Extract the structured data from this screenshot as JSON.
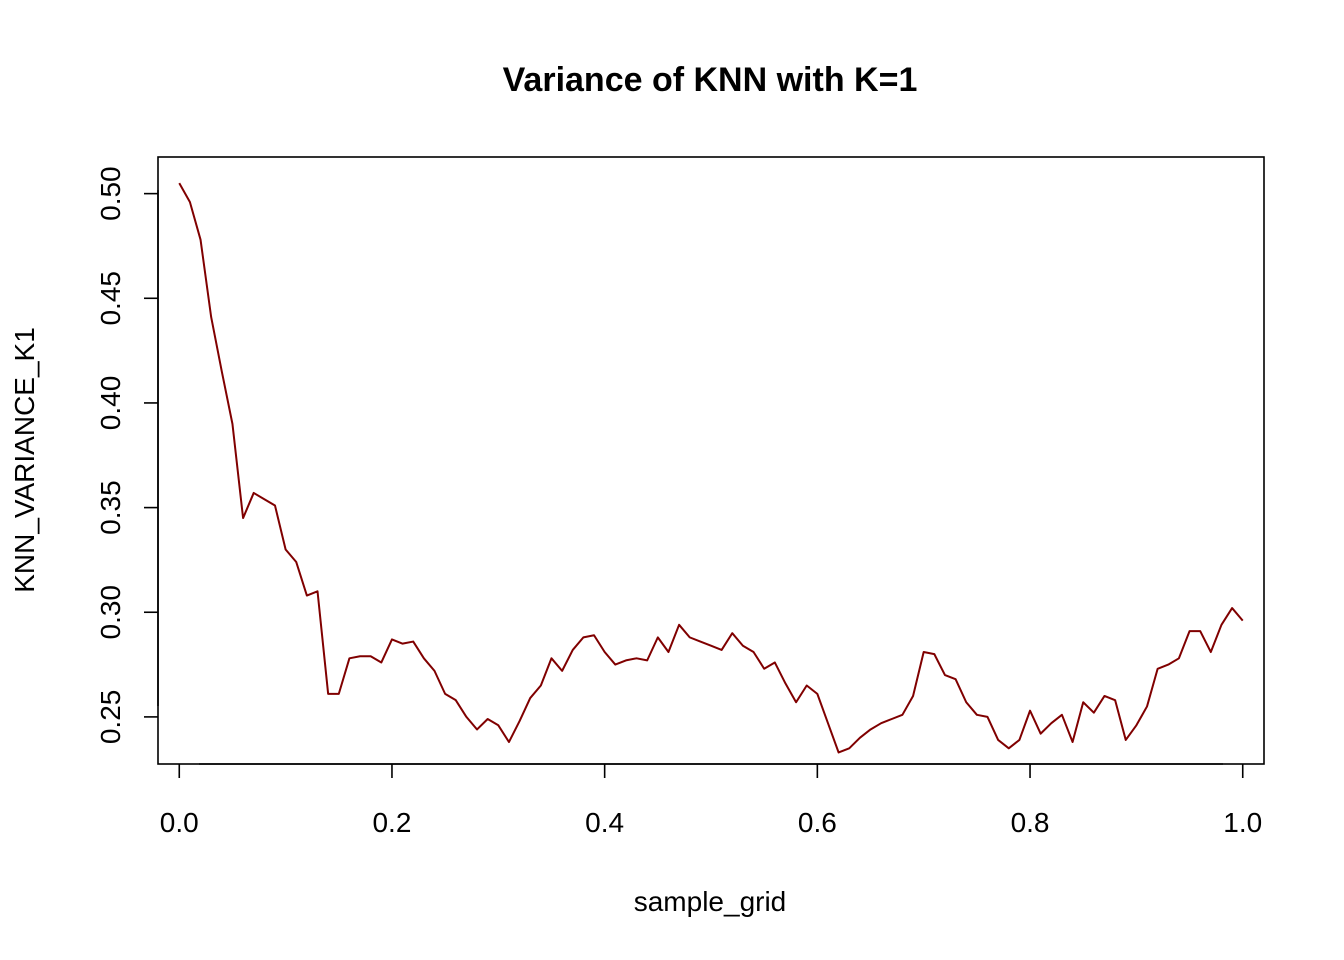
{
  "chart_data": {
    "type": "line",
    "title": "Variance of KNN with K=1",
    "xlabel": "sample_grid",
    "ylabel": "KNN_VARIANCE_K1",
    "xlim": [
      -0.02,
      1.02
    ],
    "ylim": [
      0.2275,
      0.5175
    ],
    "x_ticks": [
      {
        "value": 0.0,
        "label": "0.0"
      },
      {
        "value": 0.2,
        "label": "0.2"
      },
      {
        "value": 0.4,
        "label": "0.4"
      },
      {
        "value": 0.6,
        "label": "0.6"
      },
      {
        "value": 0.8,
        "label": "0.8"
      },
      {
        "value": 1.0,
        "label": "1.0"
      }
    ],
    "y_ticks": [
      {
        "value": 0.25,
        "label": "0.25"
      },
      {
        "value": 0.3,
        "label": "0.30"
      },
      {
        "value": 0.35,
        "label": "0.35"
      },
      {
        "value": 0.4,
        "label": "0.40"
      },
      {
        "value": 0.45,
        "label": "0.45"
      },
      {
        "value": 0.5,
        "label": "0.50"
      }
    ],
    "grid": false,
    "line_color": "#800000",
    "x": [
      0.0,
      0.01,
      0.02,
      0.03,
      0.04,
      0.05,
      0.06,
      0.07,
      0.08,
      0.09,
      0.1,
      0.11,
      0.12,
      0.13,
      0.14,
      0.15,
      0.16,
      0.17,
      0.18,
      0.19,
      0.2,
      0.21,
      0.22,
      0.23,
      0.24,
      0.25,
      0.26,
      0.27,
      0.28,
      0.29,
      0.3,
      0.31,
      0.32,
      0.33,
      0.34,
      0.35,
      0.36,
      0.37,
      0.38,
      0.39,
      0.4,
      0.41,
      0.42,
      0.43,
      0.44,
      0.45,
      0.46,
      0.47,
      0.48,
      0.49,
      0.5,
      0.51,
      0.52,
      0.53,
      0.54,
      0.55,
      0.56,
      0.57,
      0.58,
      0.59,
      0.6,
      0.61,
      0.62,
      0.63,
      0.64,
      0.65,
      0.66,
      0.67,
      0.68,
      0.69,
      0.7,
      0.71,
      0.72,
      0.73,
      0.74,
      0.75,
      0.76,
      0.77,
      0.78,
      0.79,
      0.8,
      0.81,
      0.82,
      0.83,
      0.84,
      0.85,
      0.86,
      0.87,
      0.88,
      0.89,
      0.9,
      0.91,
      0.92,
      0.93,
      0.94,
      0.95,
      0.96,
      0.97,
      0.98,
      0.99,
      1.0
    ],
    "series": [
      {
        "values": [
          0.505,
          0.496,
          0.478,
          0.441,
          0.415,
          0.39,
          0.345,
          0.357,
          0.354,
          0.351,
          0.33,
          0.324,
          0.308,
          0.31,
          0.261,
          0.261,
          0.278,
          0.279,
          0.279,
          0.276,
          0.287,
          0.285,
          0.286,
          0.278,
          0.272,
          0.261,
          0.258,
          0.25,
          0.244,
          0.249,
          0.246,
          0.238,
          0.248,
          0.259,
          0.265,
          0.278,
          0.272,
          0.282,
          0.288,
          0.289,
          0.281,
          0.275,
          0.277,
          0.278,
          0.277,
          0.288,
          0.281,
          0.294,
          0.288,
          0.286,
          0.284,
          0.282,
          0.29,
          0.284,
          0.281,
          0.273,
          0.276,
          0.266,
          0.257,
          0.265,
          0.261,
          0.247,
          0.233,
          0.235,
          0.24,
          0.244,
          0.247,
          0.249,
          0.251,
          0.26,
          0.281,
          0.28,
          0.27,
          0.268,
          0.257,
          0.251,
          0.25,
          0.239,
          0.235,
          0.239,
          0.253,
          0.242,
          0.247,
          0.251,
          0.238,
          0.257,
          0.252,
          0.26,
          0.258,
          0.239,
          0.246,
          0.255,
          0.273,
          0.275,
          0.278,
          0.291,
          0.291,
          0.281,
          0.294,
          0.302,
          0.296
        ]
      }
    ]
  }
}
